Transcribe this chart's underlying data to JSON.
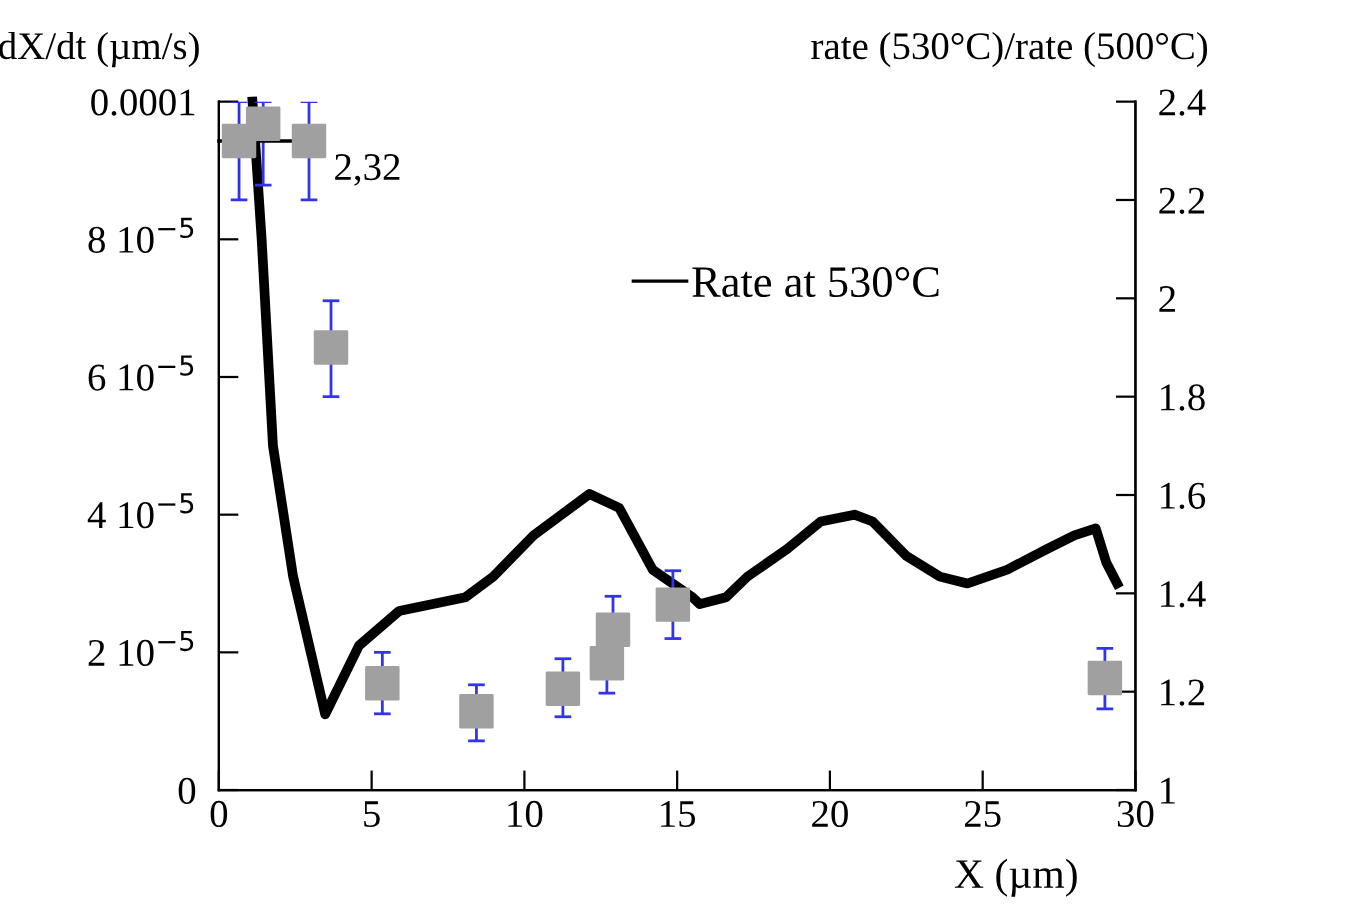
{
  "chart_data": {
    "type": "line",
    "xlabel": "X (µm)",
    "ylabel": "dX/dt (µm/s)",
    "y2label": "rate (530°C)/rate (500°C)",
    "xlim": [
      0,
      30
    ],
    "xticks": [
      0,
      5,
      10,
      15,
      20,
      25,
      30
    ],
    "ylim": [
      0,
      0.0001
    ],
    "yticks": [
      {
        "value": 0,
        "label": "0"
      },
      {
        "value": 2e-05,
        "label": "2 10$^{−5}$"
      },
      {
        "value": 4e-05,
        "label": "4 10$^{−5}$"
      },
      {
        "value": 6e-05,
        "label": "6 10$^{−5}$"
      },
      {
        "value": 8e-05,
        "label": "8 10$^{−5}$"
      },
      {
        "value": 0.0001,
        "label": "0.0001"
      }
    ],
    "y2lim": [
      1,
      2.4
    ],
    "y2ticks": [
      1,
      1.2,
      1.4,
      1.6,
      1.8,
      2,
      2.2,
      2.4
    ],
    "legend": "top",
    "grid": false,
    "annotations": [
      "2,32"
    ],
    "series": [
      {
        "name": "Rate at 530°C",
        "color": "#000000",
        "marker": "none",
        "line_style": "solid",
        "x": [
          1.1,
          1.4,
          1.77,
          2.43,
          3.48,
          4.59,
          5.9,
          8.07,
          8.98,
          10.3,
          12.13,
          13.1,
          14.2,
          15.5,
          15.74,
          16.6,
          17.3,
          18.6,
          19.7,
          20.8,
          21.4,
          22.5,
          23.6,
          24.5,
          25.8,
          27.1,
          28.0,
          28.7,
          29.05,
          29.4
        ],
        "values": [
          0.0001,
          8e-05,
          5e-05,
          3.1e-05,
          1.1e-05,
          2.1e-05,
          2.6e-05,
          2.8e-05,
          3.1e-05,
          3.7e-05,
          4.3e-05,
          4.1e-05,
          3.2e-05,
          2.8e-05,
          2.7e-05,
          2.8e-05,
          3.1e-05,
          3.5e-05,
          3.9e-05,
          4e-05,
          3.9e-05,
          3.4e-05,
          3.1e-05,
          3e-05,
          3.2e-05,
          3.5e-05,
          3.7e-05,
          3.8e-05,
          3.3e-05,
          3e-05
        ]
      },
      {
        "type": "scatter",
        "axis": "y2",
        "color": "#a0a0a0",
        "marker": "square",
        "x": [
          0.66,
          1.45,
          2.95,
          3.67,
          5.35,
          8.43,
          11.26,
          12.7,
          12.9,
          14.86,
          29.0
        ],
        "values": [
          2.32,
          2.355,
          2.32,
          1.9,
          1.217,
          1.16,
          1.206,
          1.258,
          1.326,
          1.377,
          1.228
        ],
        "errors": [
          [
            2.2,
            2.4
          ],
          [
            2.23,
            2.4
          ],
          [
            2.2,
            2.4
          ],
          [
            1.8,
            1.995
          ],
          [
            1.155,
            1.28
          ],
          [
            1.1,
            1.214
          ],
          [
            1.149,
            1.267
          ],
          [
            1.197,
            1.258
          ],
          [
            1.326,
            1.394
          ],
          [
            1.308,
            1.446
          ],
          [
            1.165,
            1.288
          ]
        ]
      },
      {
        "type": "line",
        "axis": "y2",
        "color": "#000000",
        "marker": "none",
        "line_style": "solid",
        "x": [
          0,
          3.35
        ],
        "values": [
          2.32,
          2.32
        ]
      }
    ]
  }
}
